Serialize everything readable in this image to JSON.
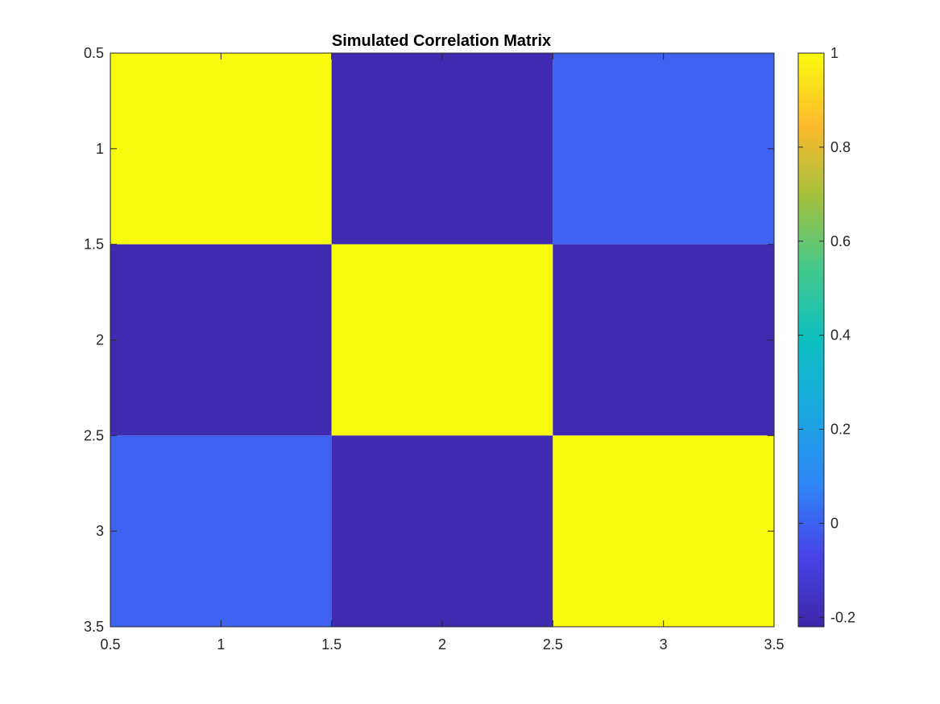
{
  "chart_data": {
    "type": "heatmap",
    "title": "Simulated Correlation Matrix",
    "xlabel": "",
    "ylabel": "",
    "xlim": [
      0.5,
      3.5
    ],
    "ylim": [
      0.5,
      3.5
    ],
    "y_reversed": true,
    "x_ticks": [
      "0.5",
      "1",
      "1.5",
      "2",
      "2.5",
      "3",
      "3.5"
    ],
    "y_ticks": [
      "0.5",
      "1",
      "1.5",
      "2",
      "2.5",
      "3",
      "3.5"
    ],
    "matrix": [
      [
        1.0,
        -0.2,
        0.0
      ],
      [
        -0.2,
        1.0,
        -0.2
      ],
      [
        0.0,
        -0.2,
        1.0
      ]
    ],
    "colormap": "parula",
    "clim": [
      -0.22,
      1.0
    ],
    "colorbar": {
      "ticks": [
        "-0.2",
        "0",
        "0.2",
        "0.4",
        "0.6",
        "0.8",
        "1"
      ],
      "location": "right"
    },
    "grid": false
  }
}
